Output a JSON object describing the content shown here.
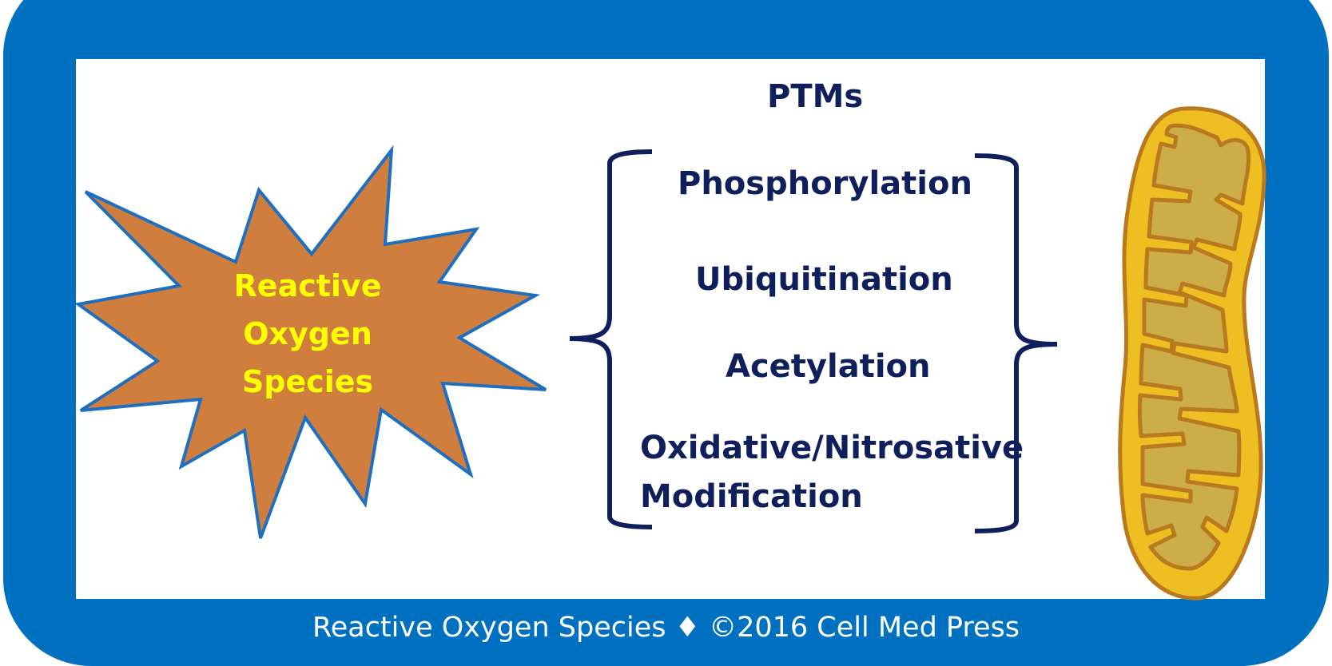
{
  "diagram": {
    "ros_label_lines": [
      "Reactive",
      "Oxygen",
      "Species"
    ],
    "ptms_title": "PTMs",
    "modifications": [
      "Phosphorylation",
      "Ubiquitination",
      "Acetylation"
    ],
    "modification_multiline": [
      "Oxidative/Nitrosative",
      "Modification"
    ]
  },
  "footer": {
    "caption": "Reactive Oxygen Species ♦ ©2016 Cell Med Press"
  },
  "colors": {
    "frame": "#0070C0",
    "starburst_fill": "#D07E3D",
    "starburst_stroke": "#1F6FC0",
    "ros_text": "#FFFF00",
    "label_text": "#0F1F5C",
    "mitochondrion_outer": "#EDBF23",
    "mitochondrion_inner": "#CBAE48",
    "mitochondrion_stroke": "#B9791F"
  },
  "icons": [
    "starburst-icon",
    "mitochondrion-icon",
    "left-bracket-icon",
    "right-bracket-icon"
  ]
}
